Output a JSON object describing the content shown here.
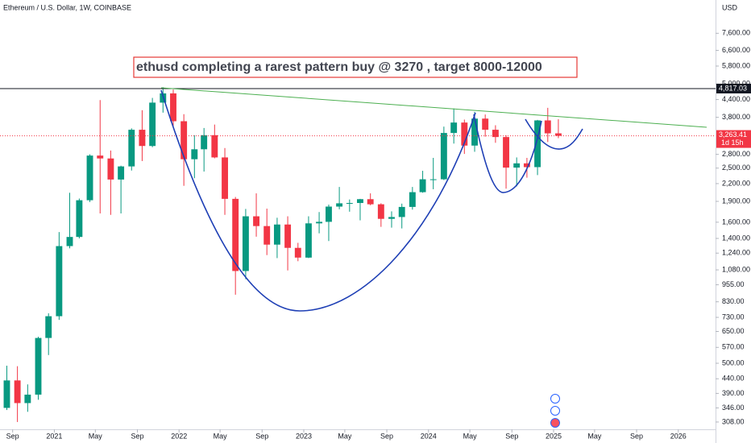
{
  "chart_data": {
    "type": "candlestick",
    "title": "Ethereum / U.S. Dollar, 1W, COINBASE",
    "annotation": "ethusd completing a rarest pattern buy @ 3270 , target 8000-12000",
    "currency": "USD",
    "log_scale": true,
    "up_color": "#089981",
    "down_color": "#f23645",
    "xlim": [
      "2020-07-26",
      "2026-04-20"
    ],
    "ylim": [
      290,
      10000
    ],
    "xticks": [
      {
        "value": "2020-09-01",
        "label": "Sep"
      },
      {
        "value": "2021-01-01",
        "label": "2021"
      },
      {
        "value": "2021-05-01",
        "label": "May"
      },
      {
        "value": "2021-09-01",
        "label": "Sep"
      },
      {
        "value": "2022-01-01",
        "label": "2022"
      },
      {
        "value": "2022-05-01",
        "label": "May"
      },
      {
        "value": "2022-09-01",
        "label": "Sep"
      },
      {
        "value": "2023-01-01",
        "label": "2023"
      },
      {
        "value": "2023-05-01",
        "label": "May"
      },
      {
        "value": "2023-09-01",
        "label": "Sep"
      },
      {
        "value": "2024-01-01",
        "label": "2024"
      },
      {
        "value": "2024-05-01",
        "label": "May"
      },
      {
        "value": "2024-09-01",
        "label": "Sep"
      },
      {
        "value": "2025-01-01",
        "label": "2025"
      },
      {
        "value": "2025-05-01",
        "label": "May"
      },
      {
        "value": "2025-09-01",
        "label": "Sep"
      },
      {
        "value": "2026-01-01",
        "label": "2026"
      }
    ],
    "yticks": [
      {
        "value": 7600,
        "label": "7,600.00"
      },
      {
        "value": 6600,
        "label": "6,600.00"
      },
      {
        "value": 5800,
        "label": "5,800.00"
      },
      {
        "value": 5000,
        "label": "5,000.00"
      },
      {
        "value": 4400,
        "label": "4,400.00"
      },
      {
        "value": 3800,
        "label": "3,800.00"
      },
      {
        "value": 2800,
        "label": "2,800.00"
      },
      {
        "value": 2500,
        "label": "2,500.00"
      },
      {
        "value": 2200,
        "label": "2,200.00"
      },
      {
        "value": 1900,
        "label": "1,900.00"
      },
      {
        "value": 1600,
        "label": "1,600.00"
      },
      {
        "value": 1400,
        "label": "1,400.00"
      },
      {
        "value": 1240,
        "label": "1,240.00"
      },
      {
        "value": 1080,
        "label": "1,080.00"
      },
      {
        "value": 955,
        "label": "955.00"
      },
      {
        "value": 830,
        "label": "830.00"
      },
      {
        "value": 730,
        "label": "730.00"
      },
      {
        "value": 650,
        "label": "650.00"
      },
      {
        "value": 570,
        "label": "570.00"
      },
      {
        "value": 500,
        "label": "500.00"
      },
      {
        "value": 440,
        "label": "440.00"
      },
      {
        "value": 390,
        "label": "390.00"
      },
      {
        "value": 346,
        "label": "346.00"
      },
      {
        "value": 308,
        "label": "308.00"
      }
    ],
    "last_price": {
      "value": 3263.41,
      "label": "3,263.41"
    },
    "countdown": "1d 15h",
    "high_line": {
      "value": 4817.03,
      "label": "4,817.03"
    },
    "x": [
      "2020-08",
      "2020-09",
      "2020-10",
      "2020-11",
      "2020-12",
      "2021-01",
      "2021-02",
      "2021-03",
      "2021-04",
      "2021-05",
      "2021-06",
      "2021-07",
      "2021-08",
      "2021-09",
      "2021-10",
      "2021-11",
      "2021-12",
      "2022-01",
      "2022-02",
      "2022-03",
      "2022-04",
      "2022-05",
      "2022-06",
      "2022-07",
      "2022-08",
      "2022-09",
      "2022-10",
      "2022-11",
      "2022-12",
      "2023-01",
      "2023-02",
      "2023-03",
      "2023-04",
      "2023-05",
      "2023-06",
      "2023-07",
      "2023-08",
      "2023-09",
      "2023-10",
      "2023-11",
      "2023-12",
      "2024-01",
      "2024-02",
      "2024-03",
      "2024-04",
      "2024-05",
      "2024-06",
      "2024-07",
      "2024-08",
      "2024-09",
      "2024-10",
      "2024-11",
      "2024-12",
      "2025-01"
    ],
    "open": [
      346,
      434,
      360,
      386,
      616,
      737,
      1314,
      1417,
      1918,
      2772,
      2707,
      2275,
      2535,
      3430,
      3000,
      4290,
      4630,
      3680,
      2690,
      2920,
      3280,
      2730,
      1940,
      1070,
      1680,
      1550,
      1330,
      1570,
      1295,
      1195,
      1585,
      1605,
      1820,
      1870,
      1875,
      1935,
      1855,
      1645,
      1670,
      1815,
      2050,
      2280,
      2280,
      3340,
      3640,
      3010,
      3760,
      3430,
      3230,
      2510,
      2600,
      2520,
      3705,
      3330
    ],
    "high": [
      490,
      488,
      420,
      622,
      755,
      1475,
      2040,
      1945,
      2800,
      4380,
      2890,
      2550,
      3470,
      4030,
      4460,
      4870,
      4780,
      3900,
      3280,
      3480,
      3580,
      2950,
      1970,
      1785,
      2030,
      1790,
      1660,
      1680,
      1350,
      1680,
      1740,
      1850,
      2140,
      1930,
      1940,
      2030,
      1870,
      1750,
      1865,
      2140,
      2445,
      2720,
      3520,
      4090,
      3730,
      3975,
      3890,
      3560,
      3280,
      2730,
      2720,
      3720,
      4110,
      3740
    ],
    "low": [
      340,
      308,
      335,
      370,
      535,
      715,
      1290,
      1400,
      1890,
      1720,
      1700,
      1720,
      2450,
      2650,
      2970,
      3950,
      3530,
      2160,
      2300,
      2430,
      2710,
      1700,
      880,
      1000,
      1420,
      1220,
      1190,
      1075,
      1160,
      1190,
      1460,
      1370,
      1780,
      1745,
      1625,
      1840,
      1540,
      1530,
      1520,
      1775,
      2040,
      2100,
      2265,
      3060,
      2810,
      2860,
      3240,
      3080,
      2110,
      2150,
      2310,
      2360,
      3100,
      3200
    ],
    "close": [
      434,
      360,
      386,
      616,
      737,
      1314,
      1417,
      1918,
      2772,
      2707,
      2275,
      2535,
      3430,
      3000,
      4290,
      4630,
      3680,
      2690,
      2920,
      3280,
      2730,
      1940,
      1070,
      1680,
      1550,
      1330,
      1570,
      1295,
      1195,
      1585,
      1605,
      1820,
      1870,
      1875,
      1935,
      1855,
      1645,
      1670,
      1815,
      2050,
      2280,
      2280,
      3340,
      3640,
      3010,
      3760,
      3430,
      3230,
      2510,
      2600,
      2520,
      3705,
      3330,
      3263
    ]
  }
}
